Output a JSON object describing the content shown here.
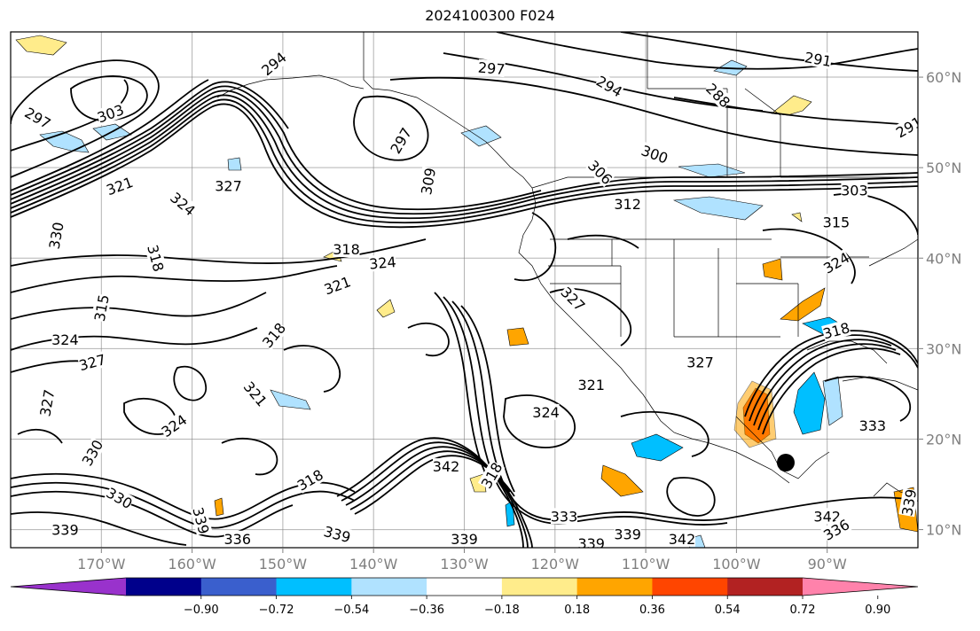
{
  "title": "2024100300 F024",
  "lon_ticks": [
    "170°W",
    "160°W",
    "150°W",
    "140°W",
    "130°W",
    "120°W",
    "110°W",
    "100°W",
    "90°W"
  ],
  "lat_ticks": [
    "60°N",
    "50°N",
    "40°N",
    "30°N",
    "20°N",
    "10°N"
  ],
  "extent": {
    "lon_min": -180,
    "lon_max": -80,
    "lat_min": 8,
    "lat_max": 65
  },
  "colorbar": {
    "colors": [
      "#9932cc",
      "#00008b",
      "#3a5fcd",
      "#00bfff",
      "#b0e2ff",
      "#ffffff",
      "#ffec8b",
      "#ffa500",
      "#ff4500",
      "#b22222",
      "#ff82ab"
    ],
    "tick_labels": [
      "−0.90",
      "−0.72",
      "−0.54",
      "−0.36",
      "−0.18",
      "0.18",
      "0.36",
      "0.54",
      "0.72",
      "0.90"
    ],
    "extend": "both"
  },
  "contour_labels": [
    {
      "text": "294",
      "lon": -151,
      "lat": 61.5,
      "rot": -40
    },
    {
      "text": "297",
      "lon": -177,
      "lat": 55.5,
      "rot": 30
    },
    {
      "text": "303",
      "lon": -169,
      "lat": 56,
      "rot": -20
    },
    {
      "text": "297",
      "lon": -127,
      "lat": 61,
      "rot": 5
    },
    {
      "text": "294",
      "lon": -114,
      "lat": 59,
      "rot": 30
    },
    {
      "text": "288",
      "lon": -102,
      "lat": 58,
      "rot": 45
    },
    {
      "text": "291",
      "lon": -91,
      "lat": 62,
      "rot": 10
    },
    {
      "text": "291",
      "lon": -81,
      "lat": 54.5,
      "rot": -30
    },
    {
      "text": "297",
      "lon": -137,
      "lat": 53,
      "rot": -60
    },
    {
      "text": "306",
      "lon": -115,
      "lat": 49.5,
      "rot": 45
    },
    {
      "text": "300",
      "lon": -109,
      "lat": 51.5,
      "rot": 20
    },
    {
      "text": "309",
      "lon": -134,
      "lat": 48.5,
      "rot": -80
    },
    {
      "text": "321",
      "lon": -168,
      "lat": 48,
      "rot": -20
    },
    {
      "text": "327",
      "lon": -156,
      "lat": 48,
      "rot": 0
    },
    {
      "text": "324",
      "lon": -161,
      "lat": 46,
      "rot": 40
    },
    {
      "text": "312",
      "lon": -112,
      "lat": 46,
      "rot": 0
    },
    {
      "text": "330",
      "lon": -175,
      "lat": 42.5,
      "rot": -80
    },
    {
      "text": "318",
      "lon": -164,
      "lat": 40,
      "rot": 75
    },
    {
      "text": "318",
      "lon": -143,
      "lat": 41,
      "rot": 0
    },
    {
      "text": "324",
      "lon": -139,
      "lat": 39.5,
      "rot": -5
    },
    {
      "text": "321",
      "lon": -144,
      "lat": 37,
      "rot": -20
    },
    {
      "text": "315",
      "lon": -89,
      "lat": 44,
      "rot": 0
    },
    {
      "text": "303",
      "lon": -87,
      "lat": 47.5,
      "rot": 0
    },
    {
      "text": "324",
      "lon": -89,
      "lat": 39.5,
      "rot": -30
    },
    {
      "text": "315",
      "lon": -170,
      "lat": 34.5,
      "rot": -80
    },
    {
      "text": "327",
      "lon": -118,
      "lat": 35.5,
      "rot": 45
    },
    {
      "text": "318",
      "lon": -151,
      "lat": 31.5,
      "rot": -50
    },
    {
      "text": "318",
      "lon": -89,
      "lat": 32,
      "rot": -15
    },
    {
      "text": "324",
      "lon": -174,
      "lat": 31,
      "rot": 0
    },
    {
      "text": "327",
      "lon": -171,
      "lat": 28.5,
      "rot": -15
    },
    {
      "text": "327",
      "lon": -104,
      "lat": 28.5,
      "rot": 0
    },
    {
      "text": "321",
      "lon": -153,
      "lat": 25,
      "rot": 50
    },
    {
      "text": "327",
      "lon": -176,
      "lat": 24,
      "rot": -80
    },
    {
      "text": "324",
      "lon": -162,
      "lat": 21.5,
      "rot": -35
    },
    {
      "text": "321",
      "lon": -116,
      "lat": 26,
      "rot": 0
    },
    {
      "text": "324",
      "lon": -121,
      "lat": 23,
      "rot": 0
    },
    {
      "text": "333",
      "lon": -85,
      "lat": 21.5,
      "rot": 0
    },
    {
      "text": "330",
      "lon": -171,
      "lat": 18.5,
      "rot": -60
    },
    {
      "text": "342",
      "lon": -132,
      "lat": 17,
      "rot": 0
    },
    {
      "text": "318",
      "lon": -127,
      "lat": 16,
      "rot": -60
    },
    {
      "text": "318",
      "lon": -147,
      "lat": 15.5,
      "rot": -30
    },
    {
      "text": "330",
      "lon": -168,
      "lat": 13.5,
      "rot": 30
    },
    {
      "text": "339",
      "lon": -159,
      "lat": 11,
      "rot": 75
    },
    {
      "text": "336",
      "lon": -155,
      "lat": 9,
      "rot": 0
    },
    {
      "text": "339",
      "lon": -144,
      "lat": 9.5,
      "rot": 15
    },
    {
      "text": "339",
      "lon": -174,
      "lat": 10,
      "rot": 0
    },
    {
      "text": "339",
      "lon": -130,
      "lat": 9,
      "rot": 0
    },
    {
      "text": "333",
      "lon": -119,
      "lat": 11.5,
      "rot": 0
    },
    {
      "text": "339",
      "lon": -112,
      "lat": 9.5,
      "rot": 0
    },
    {
      "text": "339",
      "lon": -116,
      "lat": 8.5,
      "rot": 0
    },
    {
      "text": "342",
      "lon": -106,
      "lat": 9,
      "rot": 0
    },
    {
      "text": "342",
      "lon": -90,
      "lat": 11.5,
      "rot": 0
    },
    {
      "text": "336",
      "lon": -89,
      "lat": 10,
      "rot": -30
    },
    {
      "text": "339",
      "lon": -81,
      "lat": 13,
      "rot": -80
    }
  ]
}
